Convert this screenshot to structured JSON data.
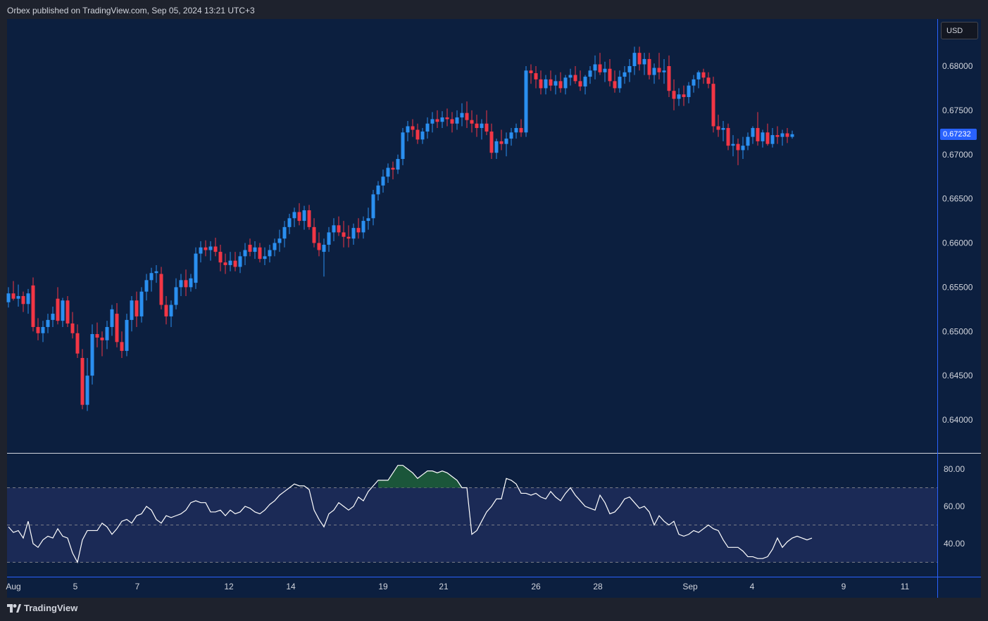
{
  "header": {
    "published": "Orbex published on TradingView.com, Sep 05, 2024 13:21 UTC+3"
  },
  "footer": {
    "brand": "TradingView"
  },
  "currency_label": "USD",
  "last_price_label": "0.67232",
  "colors": {
    "background": "#0c1f3f",
    "panel_bg": "#1e222d",
    "up": "#2a8ff0",
    "down": "#f23645",
    "rsi_line": "#ffffff",
    "rsi_band": "#1b2a56",
    "overbought_fill": "#1d5c3a",
    "axis_text": "#d1d4dc",
    "border": "#2962ff"
  },
  "chart_data": [
    {
      "type": "candlestick",
      "ylim": [
        0.6365,
        0.685
      ],
      "y_ticks": [
        "0.68000",
        "0.67500",
        "0.67000",
        "0.66500",
        "0.66000",
        "0.65500",
        "0.65000",
        "0.64500",
        "0.64000"
      ],
      "x_ticks": [
        "Aug",
        "5",
        "7",
        "12",
        "14",
        "19",
        "21",
        "26",
        "28",
        "Sep",
        "4",
        "9",
        "11"
      ],
      "last_price": 0.67232,
      "ohlc": [
        [
          0.6533,
          0.655,
          0.6527,
          0.6543
        ],
        [
          0.6543,
          0.6557,
          0.6535,
          0.6537
        ],
        [
          0.6537,
          0.6553,
          0.6528,
          0.654
        ],
        [
          0.654,
          0.6545,
          0.6522,
          0.6531
        ],
        [
          0.6531,
          0.6548,
          0.652,
          0.6543
        ],
        [
          0.6552,
          0.6561,
          0.65,
          0.6505
        ],
        [
          0.6505,
          0.6515,
          0.649,
          0.6498
        ],
        [
          0.6498,
          0.6512,
          0.6488,
          0.6505
        ],
        [
          0.6505,
          0.652,
          0.6498,
          0.6513
        ],
        [
          0.6513,
          0.6528,
          0.6505,
          0.652
        ],
        [
          0.6537,
          0.655,
          0.6508,
          0.6512
        ],
        [
          0.6512,
          0.6538,
          0.6505,
          0.6535
        ],
        [
          0.6535,
          0.654,
          0.6505,
          0.6509
        ],
        [
          0.6509,
          0.6522,
          0.6492,
          0.6498
        ],
        [
          0.6498,
          0.6508,
          0.647,
          0.6475
        ],
        [
          0.647,
          0.648,
          0.6412,
          0.6417
        ],
        [
          0.6417,
          0.647,
          0.641,
          0.645
        ],
        [
          0.645,
          0.6508,
          0.644,
          0.6497
        ],
        [
          0.6497,
          0.651,
          0.6482,
          0.6493
        ],
        [
          0.6493,
          0.65,
          0.6472,
          0.649
        ],
        [
          0.649,
          0.6512,
          0.648,
          0.6505
        ],
        [
          0.6505,
          0.653,
          0.6495,
          0.6525
        ],
        [
          0.652,
          0.6532,
          0.6482,
          0.6488
        ],
        [
          0.6488,
          0.65,
          0.647,
          0.6478
        ],
        [
          0.6478,
          0.652,
          0.6472,
          0.6513
        ],
        [
          0.6513,
          0.654,
          0.65,
          0.6535
        ],
        [
          0.6535,
          0.6545,
          0.6505,
          0.6517
        ],
        [
          0.6517,
          0.655,
          0.651,
          0.6545
        ],
        [
          0.6545,
          0.6565,
          0.6535,
          0.6558
        ],
        [
          0.6558,
          0.6572,
          0.6545,
          0.6566
        ],
        [
          0.6566,
          0.6575,
          0.6555,
          0.6568
        ],
        [
          0.6565,
          0.6573,
          0.6525,
          0.653
        ],
        [
          0.653,
          0.654,
          0.6508,
          0.6517
        ],
        [
          0.6517,
          0.6535,
          0.6505,
          0.653
        ],
        [
          0.653,
          0.656,
          0.6525,
          0.655
        ],
        [
          0.655,
          0.6565,
          0.654,
          0.6558
        ],
        [
          0.6558,
          0.657,
          0.654,
          0.655
        ],
        [
          0.655,
          0.6565,
          0.6545,
          0.656
        ],
        [
          0.6555,
          0.6595,
          0.6548,
          0.6588
        ],
        [
          0.6588,
          0.6602,
          0.6578,
          0.6595
        ],
        [
          0.6595,
          0.6603,
          0.6585,
          0.6592
        ],
        [
          0.6592,
          0.6602,
          0.658,
          0.6596
        ],
        [
          0.6596,
          0.6606,
          0.6585,
          0.659
        ],
        [
          0.659,
          0.6598,
          0.6568,
          0.6578
        ],
        [
          0.6578,
          0.6588,
          0.6565,
          0.6575
        ],
        [
          0.6575,
          0.659,
          0.6568,
          0.658
        ],
        [
          0.658,
          0.659,
          0.6568,
          0.6573
        ],
        [
          0.6573,
          0.659,
          0.6566,
          0.6585
        ],
        [
          0.6585,
          0.66,
          0.6575,
          0.6592
        ],
        [
          0.6598,
          0.6605,
          0.6585,
          0.659
        ],
        [
          0.659,
          0.6602,
          0.6582,
          0.6595
        ],
        [
          0.6595,
          0.66,
          0.6578,
          0.6582
        ],
        [
          0.6582,
          0.6595,
          0.6575,
          0.6585
        ],
        [
          0.6585,
          0.6598,
          0.6578,
          0.6592
        ],
        [
          0.6592,
          0.6605,
          0.6585,
          0.66
        ],
        [
          0.66,
          0.6615,
          0.659,
          0.6605
        ],
        [
          0.6605,
          0.6625,
          0.6595,
          0.6618
        ],
        [
          0.6618,
          0.6633,
          0.661,
          0.6628
        ],
        [
          0.6628,
          0.664,
          0.6618,
          0.6635
        ],
        [
          0.6635,
          0.6645,
          0.662,
          0.6625
        ],
        [
          0.6625,
          0.6642,
          0.6615,
          0.6637
        ],
        [
          0.6637,
          0.6643,
          0.6615,
          0.6618
        ],
        [
          0.6618,
          0.6628,
          0.6595,
          0.66
        ],
        [
          0.66,
          0.6612,
          0.6585,
          0.6592
        ],
        [
          0.659,
          0.6605,
          0.6562,
          0.6598
        ],
        [
          0.6598,
          0.6618,
          0.659,
          0.6612
        ],
        [
          0.6612,
          0.6628,
          0.6602,
          0.662
        ],
        [
          0.662,
          0.663,
          0.6608,
          0.6612
        ],
        [
          0.6612,
          0.6625,
          0.6595,
          0.6607
        ],
        [
          0.6607,
          0.662,
          0.6595,
          0.6605
        ],
        [
          0.6605,
          0.6622,
          0.6598,
          0.6617
        ],
        [
          0.6617,
          0.6628,
          0.6605,
          0.6612
        ],
        [
          0.6612,
          0.663,
          0.6605,
          0.6625
        ],
        [
          0.6625,
          0.664,
          0.6615,
          0.6628
        ],
        [
          0.6628,
          0.666,
          0.662,
          0.6655
        ],
        [
          0.6655,
          0.667,
          0.6648,
          0.6665
        ],
        [
          0.6665,
          0.6683,
          0.6657,
          0.6675
        ],
        [
          0.6675,
          0.669,
          0.6668,
          0.6685
        ],
        [
          0.6685,
          0.6692,
          0.6672,
          0.6683
        ],
        [
          0.6683,
          0.67,
          0.6678,
          0.6695
        ],
        [
          0.6695,
          0.673,
          0.6688,
          0.6725
        ],
        [
          0.6725,
          0.6738,
          0.6715,
          0.6732
        ],
        [
          0.6732,
          0.674,
          0.672,
          0.6728
        ],
        [
          0.6728,
          0.6735,
          0.6712,
          0.6717
        ],
        [
          0.6717,
          0.673,
          0.6712,
          0.6726
        ],
        [
          0.6726,
          0.6742,
          0.6718,
          0.6735
        ],
        [
          0.6735,
          0.6748,
          0.6725,
          0.674
        ],
        [
          0.674,
          0.675,
          0.673,
          0.6737
        ],
        [
          0.6737,
          0.6749,
          0.673,
          0.6742
        ],
        [
          0.6742,
          0.6752,
          0.6732,
          0.674
        ],
        [
          0.674,
          0.6748,
          0.6725,
          0.6735
        ],
        [
          0.6735,
          0.675,
          0.6728,
          0.6742
        ],
        [
          0.6742,
          0.6758,
          0.6732,
          0.6747
        ],
        [
          0.6747,
          0.676,
          0.673,
          0.6739
        ],
        [
          0.6739,
          0.675,
          0.6725,
          0.6735
        ],
        [
          0.6735,
          0.6745,
          0.672,
          0.673
        ],
        [
          0.673,
          0.674,
          0.6717,
          0.6735
        ],
        [
          0.6735,
          0.675,
          0.6722,
          0.6726
        ],
        [
          0.6726,
          0.6735,
          0.6695,
          0.6702
        ],
        [
          0.6702,
          0.6718,
          0.6695,
          0.6715
        ],
        [
          0.6715,
          0.6728,
          0.6705,
          0.6712
        ],
        [
          0.6712,
          0.6725,
          0.6698,
          0.6718
        ],
        [
          0.6718,
          0.673,
          0.671,
          0.6725
        ],
        [
          0.6725,
          0.6735,
          0.6718,
          0.673
        ],
        [
          0.673,
          0.674,
          0.672,
          0.6725
        ],
        [
          0.6725,
          0.68,
          0.672,
          0.6795
        ],
        [
          0.6795,
          0.6802,
          0.678,
          0.6792
        ],
        [
          0.6792,
          0.68,
          0.6775,
          0.6785
        ],
        [
          0.6785,
          0.6795,
          0.6768,
          0.6775
        ],
        [
          0.6775,
          0.679,
          0.6768,
          0.6785
        ],
        [
          0.6785,
          0.6795,
          0.6772,
          0.6778
        ],
        [
          0.6778,
          0.679,
          0.6768,
          0.6783
        ],
        [
          0.6783,
          0.6793,
          0.677,
          0.6775
        ],
        [
          0.6775,
          0.679,
          0.6768,
          0.6787
        ],
        [
          0.6787,
          0.6797,
          0.6778,
          0.679
        ],
        [
          0.679,
          0.68,
          0.678,
          0.6783
        ],
        [
          0.6783,
          0.6795,
          0.6772,
          0.6777
        ],
        [
          0.6777,
          0.679,
          0.6768,
          0.6788
        ],
        [
          0.6788,
          0.68,
          0.678,
          0.6795
        ],
        [
          0.6795,
          0.6812,
          0.6785,
          0.6802
        ],
        [
          0.6802,
          0.6815,
          0.679,
          0.6793
        ],
        [
          0.6793,
          0.6805,
          0.6782,
          0.6797
        ],
        [
          0.6797,
          0.6808,
          0.6777,
          0.6783
        ],
        [
          0.6783,
          0.6795,
          0.677,
          0.6775
        ],
        [
          0.6775,
          0.6795,
          0.677,
          0.6788
        ],
        [
          0.6788,
          0.68,
          0.678,
          0.6793
        ],
        [
          0.6793,
          0.6808,
          0.6782,
          0.68
        ],
        [
          0.68,
          0.6822,
          0.679,
          0.6815
        ],
        [
          0.6815,
          0.6822,
          0.6795,
          0.6802
        ],
        [
          0.6802,
          0.6815,
          0.679,
          0.6808
        ],
        [
          0.6808,
          0.6815,
          0.6785,
          0.679
        ],
        [
          0.679,
          0.6803,
          0.678,
          0.6798
        ],
        [
          0.6798,
          0.6815,
          0.6785,
          0.6793
        ],
        [
          0.6793,
          0.6808,
          0.678,
          0.6795
        ],
        [
          0.68,
          0.6812,
          0.6765,
          0.6772
        ],
        [
          0.6772,
          0.6785,
          0.675,
          0.6763
        ],
        [
          0.6763,
          0.6775,
          0.6755,
          0.6768
        ],
        [
          0.6768,
          0.6778,
          0.6755,
          0.6765
        ],
        [
          0.6765,
          0.6782,
          0.6758,
          0.6778
        ],
        [
          0.6778,
          0.679,
          0.677,
          0.6785
        ],
        [
          0.6785,
          0.6795,
          0.6775,
          0.6793
        ],
        [
          0.6793,
          0.6797,
          0.678,
          0.6787
        ],
        [
          0.6787,
          0.6793,
          0.6775,
          0.678
        ],
        [
          0.678,
          0.6788,
          0.6725,
          0.6732
        ],
        [
          0.6732,
          0.6745,
          0.672,
          0.6728
        ],
        [
          0.6728,
          0.6738,
          0.6715,
          0.673
        ],
        [
          0.673,
          0.6735,
          0.6705,
          0.671
        ],
        [
          0.671,
          0.6722,
          0.6698,
          0.6712
        ],
        [
          0.6712,
          0.6718,
          0.6688,
          0.6705
        ],
        [
          0.6705,
          0.672,
          0.6695,
          0.671
        ],
        [
          0.671,
          0.6725,
          0.6705,
          0.672
        ],
        [
          0.672,
          0.6732,
          0.6712,
          0.673
        ],
        [
          0.673,
          0.6748,
          0.671,
          0.6715
        ],
        [
          0.6715,
          0.6728,
          0.6708,
          0.6725
        ],
        [
          0.6725,
          0.6735,
          0.671,
          0.6712
        ],
        [
          0.6712,
          0.673,
          0.6708,
          0.6722
        ],
        [
          0.6722,
          0.6732,
          0.6712,
          0.672
        ],
        [
          0.672,
          0.6728,
          0.671,
          0.6724
        ],
        [
          0.6724,
          0.673,
          0.6713,
          0.672
        ],
        [
          0.672,
          0.6727,
          0.6718,
          0.6723
        ]
      ]
    },
    {
      "type": "line",
      "ylim": [
        20,
        90
      ],
      "y_ticks": [
        "80.00",
        "60.00",
        "40.00"
      ],
      "bands": [
        30,
        50,
        70
      ],
      "values": [
        49,
        46,
        47,
        43,
        52,
        40,
        38,
        42,
        44,
        43,
        48,
        44,
        43,
        35,
        30,
        42,
        47,
        47,
        47,
        51,
        49,
        45,
        48,
        52,
        53,
        51,
        55,
        56,
        60,
        58,
        53,
        51,
        55,
        54,
        55,
        56,
        58,
        62,
        63,
        62,
        62,
        57,
        57,
        58,
        55,
        58,
        56,
        57,
        60,
        59,
        57,
        56,
        58,
        61,
        63,
        66,
        68,
        70,
        72,
        71,
        71,
        69,
        58,
        53,
        49,
        56,
        58,
        62,
        60,
        58,
        60,
        65,
        63,
        68,
        71,
        74,
        74,
        74,
        78,
        82,
        82,
        80,
        78,
        75,
        77,
        79,
        79,
        78,
        79,
        78,
        76,
        74,
        70,
        70,
        45,
        47,
        52,
        57,
        60,
        64,
        64,
        75,
        74,
        72,
        67,
        67,
        66,
        67,
        65,
        64,
        68,
        65,
        63,
        67,
        70,
        66,
        63,
        60,
        59,
        58,
        66,
        62,
        56,
        57,
        60,
        64,
        65,
        62,
        59,
        60,
        57,
        50,
        55,
        52,
        50,
        52,
        45,
        44,
        45,
        47,
        46,
        48,
        50,
        48,
        47,
        42,
        38,
        38,
        38,
        36,
        33,
        33,
        32,
        32,
        33,
        37,
        43,
        38,
        41,
        43,
        44,
        43,
        42,
        43
      ],
      "overbought_fill_range": [
        75,
        92
      ]
    }
  ]
}
